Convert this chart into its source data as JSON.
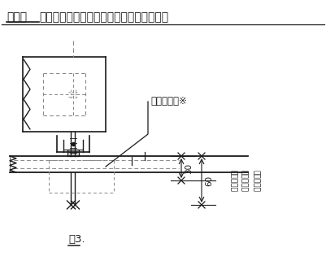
{
  "title_bold": "詳細図",
  "title_normal": "（ストッパーボルト及び基礎ボルト周辺）",
  "label_kiso_bolt": "基礎ボルト※",
  "label_30": "30",
  "label_60": "60",
  "label_vertical_1": "基礎ボルト",
  "label_vertical_2": "立上げ寸法",
  "label_vertical_3": "（床置時）",
  "caption": "図3.",
  "bg_color": "#ffffff",
  "line_color": "#1a1a1a",
  "dash_color": "#888888",
  "fig_width": 4.02,
  "fig_height": 3.26,
  "dpi": 100
}
